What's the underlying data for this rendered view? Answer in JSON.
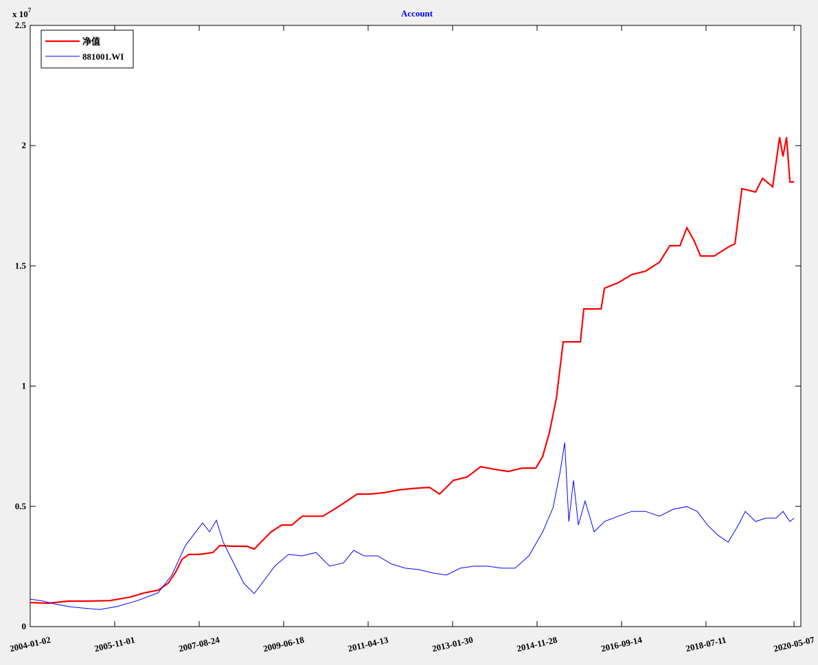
{
  "chart_data": {
    "type": "line",
    "title": "Account",
    "y_multiplier": "x 10",
    "y_exponent": "7",
    "xlim": [
      0,
      4105
    ],
    "ylim": [
      0,
      2.5
    ],
    "xticks": [
      {
        "value": 0,
        "label": "2004-01-02"
      },
      {
        "value": 450,
        "label": "2005-11-01"
      },
      {
        "value": 900,
        "label": "2007-08-24"
      },
      {
        "value": 1350,
        "label": "2009-06-18"
      },
      {
        "value": 1800,
        "label": "2011-04-13"
      },
      {
        "value": 2250,
        "label": "2013-01-30"
      },
      {
        "value": 2700,
        "label": "2014-11-28"
      },
      {
        "value": 3150,
        "label": "2016-09-14"
      },
      {
        "value": 3600,
        "label": "2018-07-11"
      },
      {
        "value": 4069,
        "label": "2020-05-07"
      }
    ],
    "yticks": [
      0,
      0.5,
      1,
      1.5,
      2,
      2.5
    ],
    "legend": "upper-left",
    "series": [
      {
        "name": "净值",
        "color": "#ff0000",
        "width": 2.2,
        "x": [
          0,
          95,
          205,
          315,
          424,
          534,
          607,
          681,
          735,
          772,
          809,
          845,
          900,
          973,
          1010,
          1083,
          1156,
          1193,
          1229,
          1284,
          1339,
          1394,
          1449,
          1559,
          1632,
          1687,
          1742,
          1815,
          1888,
          1961,
          2034,
          2126,
          2181,
          2254,
          2327,
          2400,
          2473,
          2547,
          2620,
          2693,
          2730,
          2766,
          2803,
          2839,
          2931,
          2949,
          3041,
          3059,
          3132,
          3205,
          3278,
          3352,
          3407,
          3461,
          3498,
          3535,
          3571,
          3644,
          3718,
          3754,
          3791,
          3864,
          3901,
          3955,
          3992,
          4010,
          4029,
          4047,
          4069
        ],
        "values": [
          0.1,
          0.097,
          0.106,
          0.106,
          0.108,
          0.123,
          0.14,
          0.151,
          0.18,
          0.223,
          0.28,
          0.3,
          0.3,
          0.308,
          0.337,
          0.334,
          0.334,
          0.322,
          0.351,
          0.394,
          0.422,
          0.422,
          0.459,
          0.459,
          0.494,
          0.522,
          0.551,
          0.551,
          0.557,
          0.568,
          0.574,
          0.579,
          0.551,
          0.608,
          0.622,
          0.665,
          0.654,
          0.645,
          0.659,
          0.659,
          0.708,
          0.808,
          0.95,
          1.184,
          1.184,
          1.321,
          1.321,
          1.407,
          1.43,
          1.464,
          1.478,
          1.515,
          1.584,
          1.584,
          1.658,
          1.607,
          1.541,
          1.541,
          1.578,
          1.592,
          1.821,
          1.807,
          1.864,
          1.829,
          2.035,
          1.955,
          2.035,
          1.849,
          1.849
        ]
      },
      {
        "name": "881001.WI",
        "color": "#0000ff",
        "width": 1,
        "x": [
          0,
          59,
          132,
          205,
          278,
          370,
          461,
          571,
          681,
          754,
          827,
          882,
          918,
          955,
          992,
          1028,
          1083,
          1138,
          1193,
          1248,
          1303,
          1376,
          1449,
          1522,
          1595,
          1669,
          1723,
          1778,
          1851,
          1925,
          1998,
          2071,
          2144,
          2217,
          2291,
          2364,
          2437,
          2510,
          2583,
          2656,
          2730,
          2785,
          2821,
          2847,
          2869,
          2894,
          2920,
          2956,
          3004,
          3059,
          3132,
          3205,
          3278,
          3352,
          3425,
          3498,
          3553,
          3608,
          3663,
          3718,
          3772,
          3809,
          3864,
          3919,
          3973,
          4010,
          4047,
          4069
        ],
        "values": [
          0.114,
          0.108,
          0.094,
          0.083,
          0.077,
          0.071,
          0.083,
          0.108,
          0.14,
          0.214,
          0.337,
          0.394,
          0.431,
          0.394,
          0.442,
          0.351,
          0.265,
          0.18,
          0.137,
          0.194,
          0.251,
          0.3,
          0.294,
          0.308,
          0.251,
          0.265,
          0.317,
          0.294,
          0.294,
          0.26,
          0.243,
          0.237,
          0.223,
          0.214,
          0.243,
          0.251,
          0.251,
          0.243,
          0.243,
          0.294,
          0.394,
          0.494,
          0.636,
          0.765,
          0.437,
          0.608,
          0.422,
          0.522,
          0.394,
          0.437,
          0.459,
          0.479,
          0.479,
          0.459,
          0.488,
          0.499,
          0.479,
          0.422,
          0.38,
          0.351,
          0.422,
          0.479,
          0.437,
          0.451,
          0.451,
          0.479,
          0.437,
          0.451
        ]
      }
    ]
  }
}
